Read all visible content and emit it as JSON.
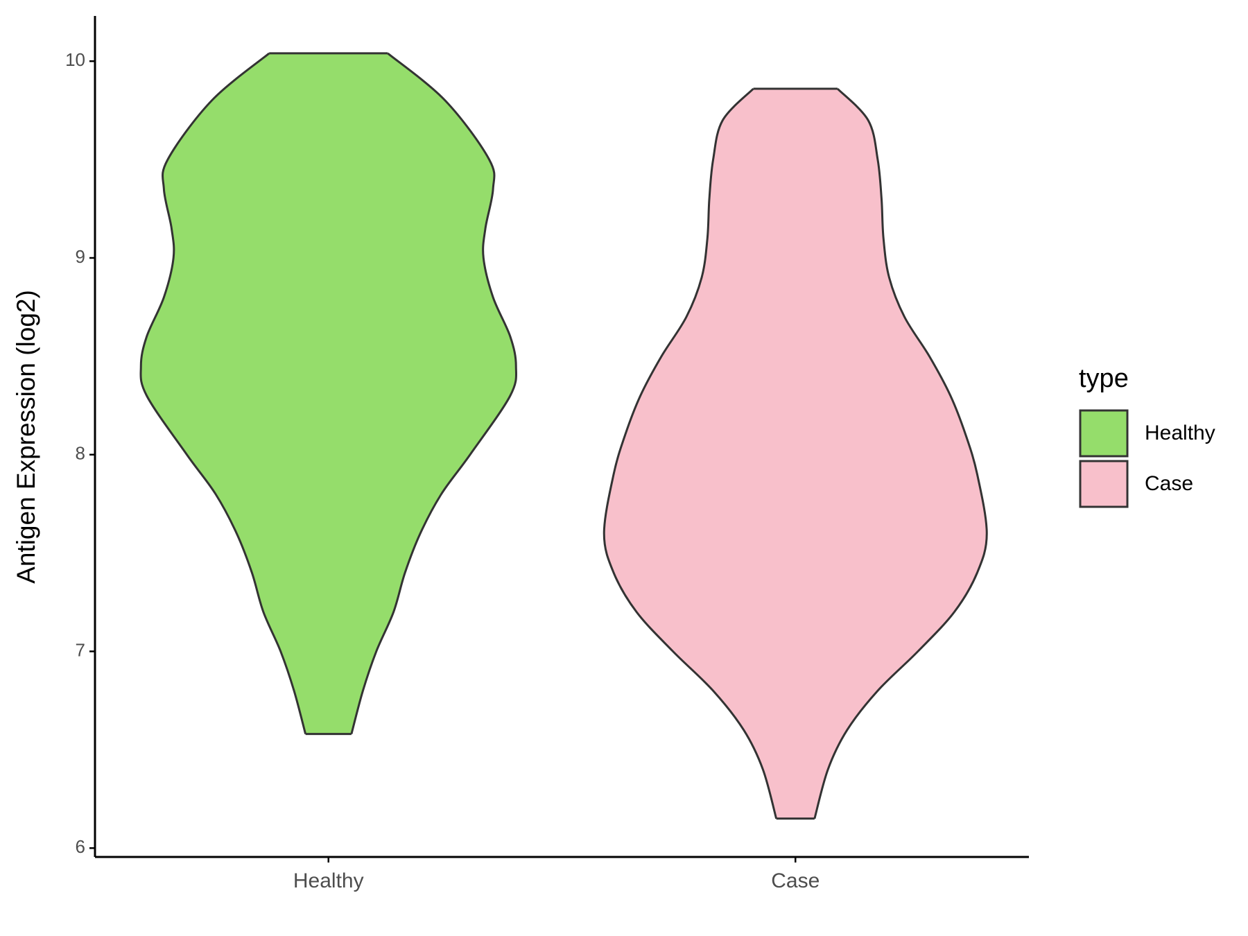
{
  "chart_data": {
    "type": "violin",
    "y_label": "Antigen Expression (log2)",
    "legend_title": "type",
    "categories": [
      "Healthy",
      "Case"
    ],
    "series": [
      {
        "name": "Healthy",
        "color": "#95dd6b",
        "y": [
          10.04,
          9.8,
          9.5,
          9.35,
          9.15,
          9.0,
          8.8,
          8.6,
          8.45,
          8.3,
          8.0,
          7.8,
          7.6,
          7.4,
          7.2,
          7.0,
          6.8,
          6.58
        ],
        "width": [
          0.31,
          0.61,
          0.84,
          0.86,
          0.82,
          0.81,
          0.86,
          0.95,
          0.98,
          0.95,
          0.74,
          0.59,
          0.48,
          0.4,
          0.34,
          0.25,
          0.18,
          0.12
        ]
      },
      {
        "name": "Case",
        "color": "#f8c0cb",
        "y": [
          9.86,
          9.7,
          9.5,
          9.3,
          9.1,
          8.9,
          8.7,
          8.5,
          8.3,
          8.1,
          7.9,
          7.6,
          7.4,
          7.2,
          7.0,
          6.8,
          6.6,
          6.4,
          6.15
        ],
        "width": [
          0.22,
          0.38,
          0.43,
          0.45,
          0.46,
          0.49,
          0.57,
          0.7,
          0.81,
          0.89,
          0.95,
          1.0,
          0.95,
          0.83,
          0.64,
          0.43,
          0.27,
          0.17,
          0.1
        ]
      }
    ],
    "ylim": [
      5.955,
      10.23
    ],
    "yticks": [
      6,
      7,
      8,
      9,
      10
    ]
  }
}
